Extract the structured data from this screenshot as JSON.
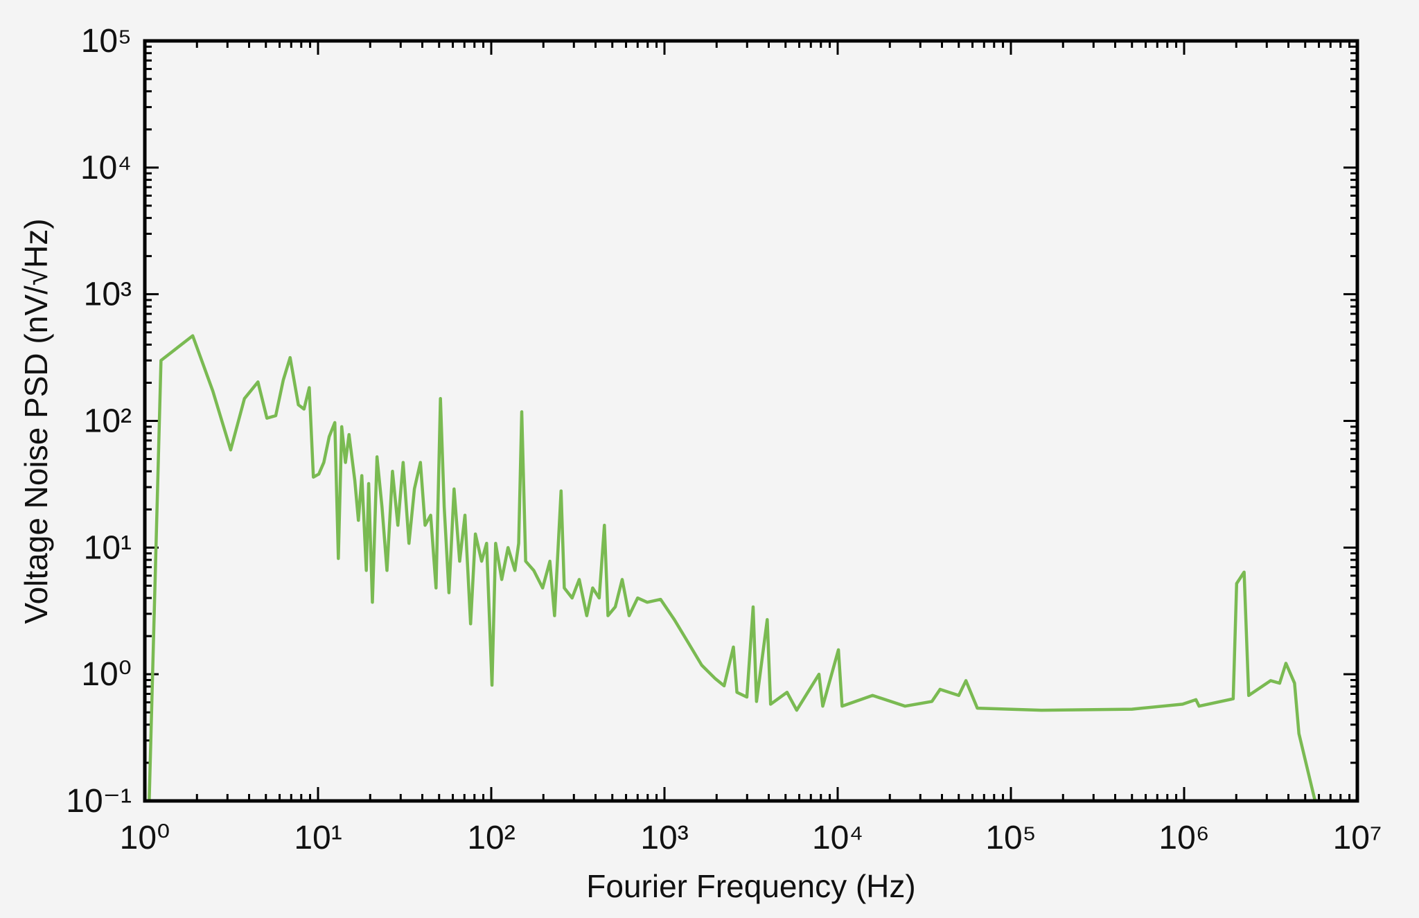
{
  "chart_data": {
    "type": "line",
    "xlabel": "Fourier Frequency (Hz)",
    "ylabel": "Voltage Noise PSD (nV/√Hz)",
    "xscale": "log",
    "yscale": "log",
    "xlim": [
      1,
      10000000
    ],
    "ylim": [
      0.1,
      100000
    ],
    "xticks": [
      {
        "value": 1,
        "label": "10⁰"
      },
      {
        "value": 10,
        "label": "10¹"
      },
      {
        "value": 100,
        "label": "10²"
      },
      {
        "value": 1000,
        "label": "10³"
      },
      {
        "value": 10000,
        "label": "10⁴"
      },
      {
        "value": 100000,
        "label": "10⁵"
      },
      {
        "value": 1000000,
        "label": "10⁶"
      },
      {
        "value": 10000000,
        "label": "10⁷"
      }
    ],
    "yticks": [
      {
        "value": 0.1,
        "label": "10⁻¹"
      },
      {
        "value": 1,
        "label": "10⁰"
      },
      {
        "value": 10,
        "label": "10¹"
      },
      {
        "value": 100,
        "label": "10²"
      },
      {
        "value": 1000,
        "label": "10³"
      },
      {
        "value": 10000,
        "label": "10⁴"
      },
      {
        "value": 100000,
        "label": "10⁵"
      }
    ],
    "series": [
      {
        "color": "#7aba52",
        "x": [
          1.06,
          1.24,
          1.89,
          2.47,
          3.13,
          3.76,
          4.5,
          5.07,
          5.7,
          6.3,
          6.9,
          7.7,
          8.3,
          8.9,
          9.4,
          10.1,
          10.8,
          11.6,
          12.5,
          13.1,
          13.7,
          14.4,
          15.1,
          16.3,
          17.1,
          17.9,
          19.0,
          19.6,
          20.6,
          21.9,
          23.4,
          25.0,
          26.9,
          28.9,
          31,
          33.5,
          36,
          39,
          41.5,
          44.7,
          48,
          50.9,
          53.5,
          57,
          61,
          65.7,
          70.5,
          76,
          81,
          88,
          94,
          101,
          106,
          115,
          125,
          137,
          144,
          150,
          158,
          176,
          198,
          218,
          232,
          253,
          264,
          293,
          322,
          356,
          385,
          420,
          450,
          472,
          520,
          570,
          625,
          700,
          795,
          950,
          1140,
          1370,
          1640,
          1970,
          2210,
          2500,
          2620,
          2990,
          3250,
          3400,
          3920,
          4100,
          5100,
          5800,
          7800,
          8200,
          10100,
          10600,
          15900,
          24500,
          35000,
          39000,
          50000,
          55000,
          64000,
          150000,
          500000,
          980000,
          1170000,
          1220000,
          1920000,
          2010000,
          2220000,
          2360000,
          3160000,
          3560000,
          3870000,
          4340000,
          4600000,
          5700000
        ],
        "values": [
          0.1,
          300,
          470,
          172,
          59,
          150,
          203,
          105,
          110,
          210,
          316,
          134,
          124,
          183,
          36,
          38,
          47,
          75,
          97,
          8.2,
          90,
          47,
          78,
          34,
          16.4,
          37,
          6.6,
          32,
          3.7,
          52,
          21,
          6.6,
          40,
          15,
          47,
          10.8,
          29,
          47,
          15,
          18,
          4.8,
          150,
          21,
          4.4,
          29,
          7.8,
          18,
          2.5,
          12.8,
          7.8,
          10.8,
          0.82,
          10.8,
          5.6,
          10,
          6.6,
          10.8,
          118,
          7.8,
          6.6,
          4.8,
          7.8,
          2.9,
          28,
          4.8,
          4.0,
          5.6,
          2.9,
          4.8,
          4.0,
          15,
          2.9,
          3.4,
          5.6,
          2.9,
          4.0,
          3.7,
          3.9,
          2.7,
          1.78,
          1.18,
          0.92,
          0.81,
          1.64,
          0.72,
          0.66,
          3.4,
          0.61,
          2.7,
          0.58,
          0.72,
          0.52,
          1.0,
          0.56,
          1.56,
          0.56,
          0.68,
          0.56,
          0.61,
          0.76,
          0.68,
          0.89,
          0.54,
          0.52,
          0.53,
          0.58,
          0.63,
          0.56,
          0.64,
          5.2,
          6.4,
          0.68,
          0.89,
          0.85,
          1.22,
          0.85,
          0.34,
          0.1
        ]
      }
    ]
  }
}
